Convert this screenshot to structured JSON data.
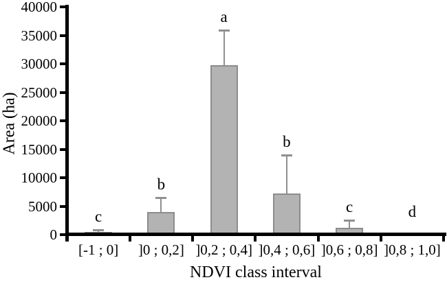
{
  "chart_data": {
    "type": "bar",
    "title": "",
    "xlabel": "NDVI class interval",
    "ylabel": "Area (ha)",
    "categories": [
      "[-1 ; 0]",
      "]0 ; 0,2]",
      "]0,2 ; 0,4]",
      "]0,4 ; 0,6]",
      "]0,6 ; 0,8]",
      "]0,8 ; 1,0]"
    ],
    "values": [
      480,
      3950,
      29700,
      7200,
      1200,
      0
    ],
    "error_plus": [
      360,
      2550,
      6200,
      6800,
      1300,
      0
    ],
    "sig_letters": [
      "c",
      "b",
      "a",
      "b",
      "c",
      "d"
    ],
    "ylim": [
      0,
      40000
    ],
    "ytick_step": 5000,
    "yticks": [
      0,
      5000,
      10000,
      15000,
      20000,
      25000,
      30000,
      35000,
      40000
    ],
    "grid": "off",
    "legend": "none",
    "colors": {
      "bar_fill": "#b3b3b3",
      "bar_border": "#8c8c8c",
      "error_bar": "#8f8f8f",
      "axis": "#000000",
      "background": "#ffffff"
    }
  }
}
